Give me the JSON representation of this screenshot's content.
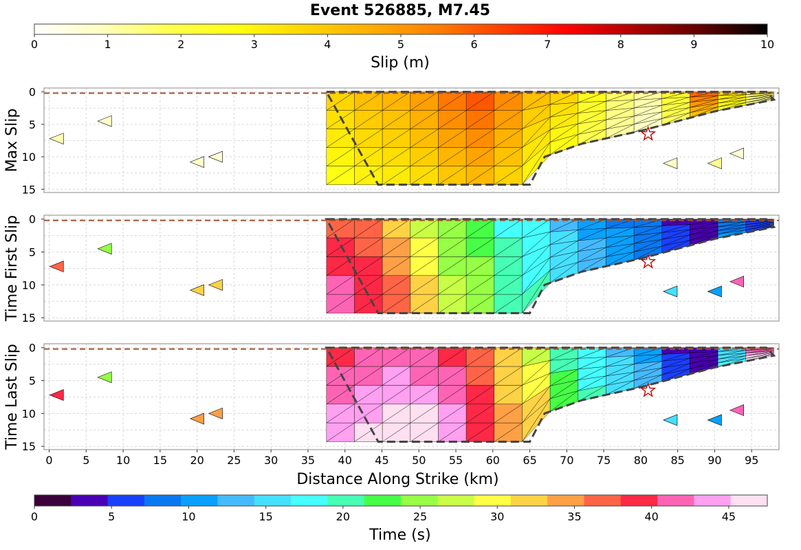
{
  "title": "Event 526885, M7.45",
  "slip_colorbar": {
    "label": "Slip (m)",
    "ticks": [
      0,
      1,
      2,
      3,
      4,
      5,
      6,
      7,
      8,
      9,
      10
    ],
    "range": [
      0,
      10
    ],
    "colors": [
      "#ffffff",
      "#ffffc0",
      "#ffff50",
      "#ffff10",
      "#ffd800",
      "#ffb000",
      "#ff8000",
      "#ff4000",
      "#ff0000",
      "#b00000",
      "#600000",
      "#000000"
    ]
  },
  "time_colorbar": {
    "label": "Time (s)",
    "ticks": [
      0,
      5,
      10,
      15,
      20,
      25,
      30,
      35,
      40,
      45
    ],
    "range": [
      0,
      47.5
    ],
    "colors": [
      "#3a003a",
      "#4a00b4",
      "#1a40ff",
      "#0a78f0",
      "#0aa0ff",
      "#46baff",
      "#46e0ff",
      "#46ffff",
      "#46ffb4",
      "#46ff46",
      "#96ff46",
      "#c8ff46",
      "#ffff46",
      "#ffd246",
      "#ffa046",
      "#ff6446",
      "#ff2846",
      "#ff64b4",
      "#ffa0f0",
      "#ffe0f0"
    ]
  },
  "chart_data": [
    {
      "type": "scatter",
      "panel": "slip",
      "ylabel": "Max Slip",
      "xlabel": "",
      "xlim": [
        -0.7,
        98.7
      ],
      "ylim": [
        15.5,
        -0.6
      ],
      "grid": true,
      "yticks": [
        0,
        5,
        10,
        15
      ],
      "surface_trace_depth_km": 0.2,
      "hypocenter": {
        "x": 81,
        "y": 6.5
      },
      "rupture_region": {
        "updip_edge": [
          [
            37.5,
            0
          ],
          [
            45,
            0
          ],
          [
            50,
            0
          ],
          [
            60,
            0
          ],
          [
            70,
            0
          ],
          [
            80,
            0
          ],
          [
            90,
            0
          ],
          [
            97,
            0
          ]
        ],
        "downdip_edge": [
          [
            44.5,
            14.3
          ],
          [
            50,
            14.3
          ],
          [
            55,
            14.3
          ],
          [
            60,
            14.3
          ],
          [
            65,
            14.3
          ],
          [
            67,
            10
          ],
          [
            72,
            8
          ],
          [
            80,
            6
          ],
          [
            90,
            3
          ],
          [
            98,
            1.2
          ]
        ],
        "values": [
          3.2,
          3.6,
          3.8,
          4.2,
          4.8,
          5.2,
          4.5,
          3.6,
          3.2,
          2.2,
          1.4,
          1.0,
          2.0,
          5.0,
          3.0,
          1.5
        ]
      },
      "outlier_patches": [
        {
          "x": 1,
          "y": 7.2,
          "value": 1.0
        },
        {
          "x": 7.5,
          "y": 4.5,
          "value": 0.8
        },
        {
          "x": 20,
          "y": 10.8,
          "value": 0.8
        },
        {
          "x": 22.5,
          "y": 10,
          "value": 0.6
        },
        {
          "x": 84,
          "y": 11,
          "value": 0.8
        },
        {
          "x": 90,
          "y": 11,
          "value": 1.3
        },
        {
          "x": 93,
          "y": 9.5,
          "value": 0.6
        }
      ]
    },
    {
      "type": "scatter",
      "panel": "time_first",
      "ylabel": "Time First Slip",
      "xlabel": "",
      "xlim": [
        -0.7,
        98.7
      ],
      "ylim": [
        15.5,
        -0.6
      ],
      "grid": true,
      "yticks": [
        0,
        5,
        10,
        15
      ],
      "surface_trace_depth_km": 0.2,
      "hypocenter": {
        "x": 81,
        "y": 6.5
      },
      "rupture_region": {
        "updip_edge": [
          [
            37.5,
            0
          ],
          [
            45,
            0
          ],
          [
            50,
            0
          ],
          [
            60,
            0
          ],
          [
            70,
            0
          ],
          [
            80,
            0
          ],
          [
            90,
            0
          ],
          [
            97,
            0
          ]
        ],
        "downdip_edge": [
          [
            44.5,
            14.3
          ],
          [
            50,
            14.3
          ],
          [
            55,
            14.3
          ],
          [
            60,
            14.3
          ],
          [
            65,
            14.3
          ],
          [
            67,
            10
          ],
          [
            72,
            8
          ],
          [
            80,
            6
          ],
          [
            90,
            3
          ],
          [
            98,
            1.2
          ]
        ],
        "values": [
          40,
          38,
          35,
          30,
          26,
          24,
          20,
          18,
          15,
          12,
          10,
          8,
          5,
          3,
          9,
          6
        ]
      },
      "outlier_patches": [
        {
          "x": 1,
          "y": 7.2,
          "value": 36
        },
        {
          "x": 7.5,
          "y": 4.5,
          "value": 25
        },
        {
          "x": 20,
          "y": 10.8,
          "value": 31
        },
        {
          "x": 22.5,
          "y": 10,
          "value": 33
        },
        {
          "x": 84,
          "y": 11,
          "value": 15
        },
        {
          "x": 90,
          "y": 11,
          "value": 10
        },
        {
          "x": 93,
          "y": 9.5,
          "value": 42
        }
      ]
    },
    {
      "type": "scatter",
      "panel": "time_last",
      "ylabel": "Time Last Slip",
      "xlabel": "Distance Along Strike (km)",
      "xlim": [
        -0.7,
        98.7
      ],
      "ylim": [
        15.5,
        -0.6
      ],
      "grid": true,
      "yticks": [
        0,
        5,
        10,
        15
      ],
      "xticks": [
        0,
        5,
        10,
        15,
        20,
        25,
        30,
        35,
        40,
        45,
        50,
        55,
        60,
        65,
        70,
        75,
        80,
        85,
        90,
        95
      ],
      "surface_trace_depth_km": 0.2,
      "hypocenter": {
        "x": 81,
        "y": 6.5
      },
      "rupture_region": {
        "updip_edge": [
          [
            37.5,
            0
          ],
          [
            45,
            0
          ],
          [
            50,
            0
          ],
          [
            60,
            0
          ],
          [
            70,
            0
          ],
          [
            80,
            0
          ],
          [
            90,
            0
          ],
          [
            97,
            0
          ]
        ],
        "downdip_edge": [
          [
            44.5,
            14.3
          ],
          [
            50,
            14.3
          ],
          [
            55,
            14.3
          ],
          [
            60,
            14.3
          ],
          [
            65,
            14.3
          ],
          [
            67,
            10
          ],
          [
            72,
            8
          ],
          [
            80,
            6
          ],
          [
            90,
            3
          ],
          [
            98,
            1.2
          ]
        ],
        "values": [
          42,
          43,
          45,
          44,
          42,
          38,
          33,
          30,
          22,
          18,
          15,
          12,
          5,
          4,
          16,
          44
        ]
      },
      "outlier_patches": [
        {
          "x": 1,
          "y": 7.2,
          "value": 39
        },
        {
          "x": 7.5,
          "y": 4.5,
          "value": 26
        },
        {
          "x": 20,
          "y": 10.8,
          "value": 34
        },
        {
          "x": 22.5,
          "y": 10,
          "value": 34
        },
        {
          "x": 84,
          "y": 11,
          "value": 15
        },
        {
          "x": 90,
          "y": 11,
          "value": 10
        },
        {
          "x": 93,
          "y": 9.5,
          "value": 42
        }
      ]
    }
  ]
}
